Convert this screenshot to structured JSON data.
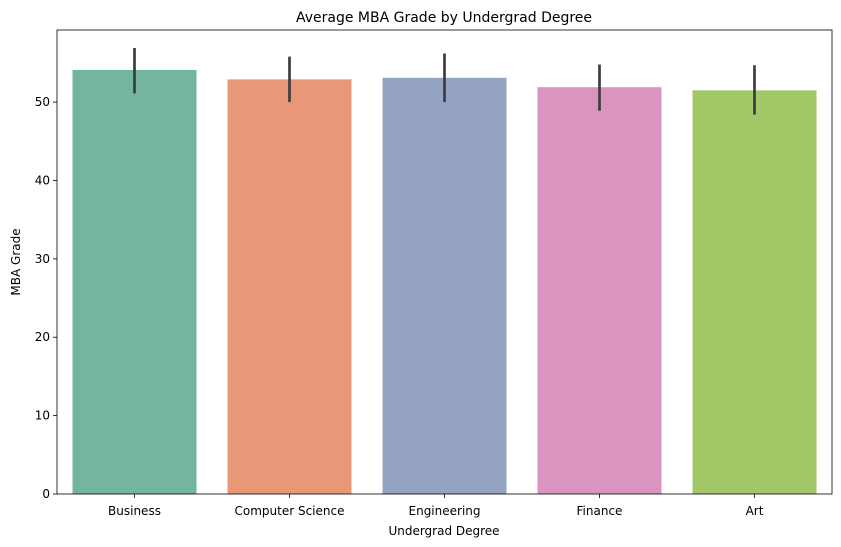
{
  "chart_data": {
    "type": "bar",
    "title": "Average MBA Grade by Undergrad Degree",
    "xlabel": "Undergrad Degree",
    "ylabel": "MBA Grade",
    "categories": [
      "Business",
      "Computer Science",
      "Engineering",
      "Finance",
      "Art"
    ],
    "values": [
      54.1,
      52.9,
      53.1,
      51.9,
      51.5
    ],
    "error_low": [
      51.1,
      50.0,
      50.0,
      48.9,
      48.4
    ],
    "error_high": [
      56.9,
      55.8,
      56.2,
      54.8,
      54.7
    ],
    "colors": [
      "#73b5a0",
      "#e99877",
      "#94a4c2",
      "#db94bf",
      "#a1c766"
    ],
    "error_color": "#3d3d3d",
    "ylim": [
      0,
      59.2
    ],
    "yticks": [
      0,
      10,
      20,
      30,
      40,
      50
    ],
    "grid": false,
    "legend": "none"
  }
}
